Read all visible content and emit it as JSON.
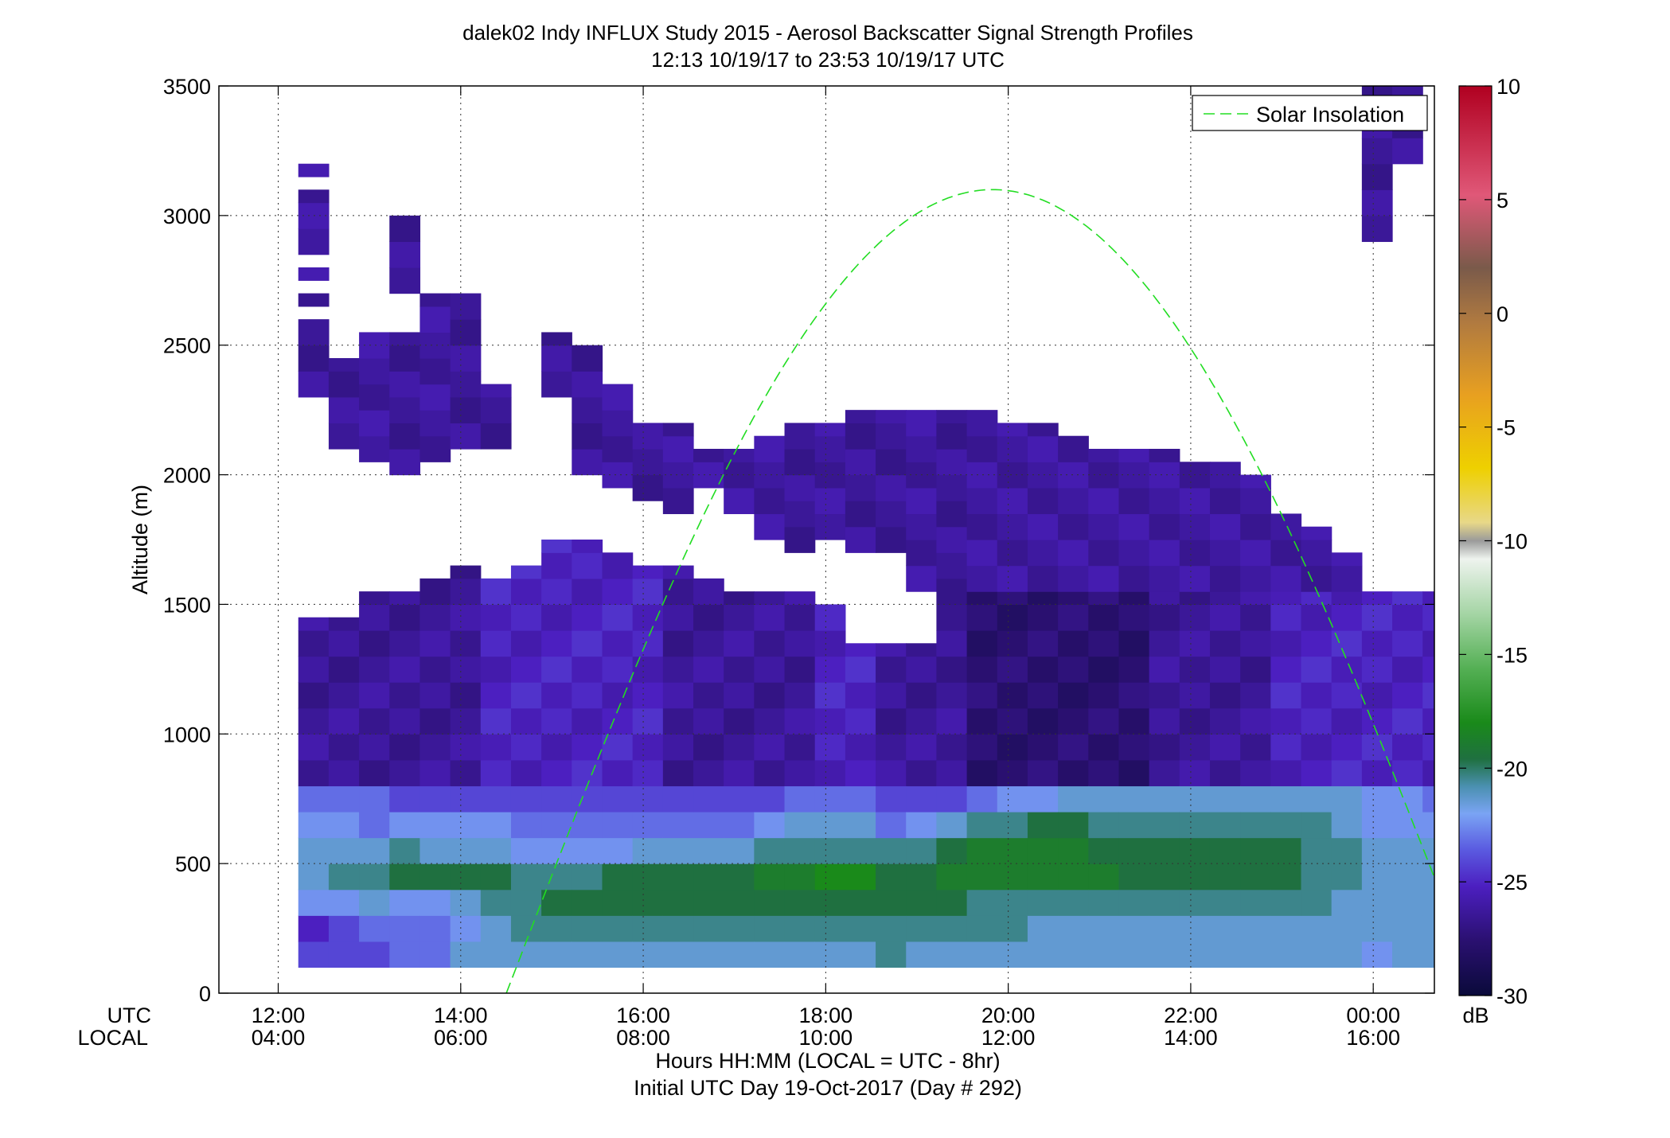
{
  "chart_data": {
    "type": "heatmap",
    "title": "dalek02 Indy INFLUX Study 2015 - Aerosol Backscatter Signal Strength Profiles",
    "subtitle": "12:13 10/19/17 to 23:53 10/19/17  UTC",
    "ylabel": "Altitude (m)",
    "xlabel": "Hours HH:MM  (LOCAL = UTC - 8hr)",
    "xlabel2": "Initial UTC Day 19-Oct-2017 (Day # 292)",
    "row_label_utc": "UTC",
    "row_label_local": "LOCAL",
    "x_range_hours": [
      11.35,
      24.67
    ],
    "y_range": [
      0,
      3500
    ],
    "x_ticks": [
      {
        "hour": 12,
        "utc": "12:00",
        "local": "04:00"
      },
      {
        "hour": 14,
        "utc": "14:00",
        "local": "06:00"
      },
      {
        "hour": 16,
        "utc": "16:00",
        "local": "08:00"
      },
      {
        "hour": 18,
        "utc": "18:00",
        "local": "10:00"
      },
      {
        "hour": 20,
        "utc": "20:00",
        "local": "12:00"
      },
      {
        "hour": 22,
        "utc": "22:00",
        "local": "14:00"
      },
      {
        "hour": 24,
        "utc": "00:00",
        "local": "16:00"
      }
    ],
    "y_ticks": [
      0,
      500,
      1000,
      1500,
      2000,
      2500,
      3000,
      3500
    ],
    "y_tick_labels": [
      "0",
      "500",
      "1000",
      "1500",
      "2000",
      "2500",
      "3000",
      "3500"
    ],
    "grid": true,
    "legend": {
      "position": "top-right",
      "entries": [
        {
          "name": "Solar Insolation",
          "color": "#22dd22",
          "style": "dashed"
        }
      ]
    },
    "colorbar": {
      "range": [
        -30,
        10
      ],
      "ticks": [
        10,
        5,
        0,
        -5,
        -10,
        -15,
        -20,
        -25,
        -30
      ],
      "tick_labels": [
        "10",
        "5",
        "0",
        "-5",
        "-10",
        "-15",
        "-20",
        "-25",
        "-30"
      ],
      "unit": "dB"
    },
    "solar_insolation": {
      "start_hour": 14.5,
      "end_hour": 24.67,
      "peak_hour": 19.83,
      "peak_altitude": 3100,
      "end_altitude": 420
    },
    "backscatter": {
      "start_hour": 12.22,
      "step_hours": 0.333,
      "height_step_m": 100,
      "columns": [
        {
          "base": 0,
          "top": 1450,
          "low": [
            -25,
            -26,
            -23,
            -22,
            -22,
            -23,
            -24
          ],
          "mid": -27,
          "upper": [
            {
              "b": 2300,
              "t": 2600
            },
            {
              "b": 2650,
              "t": 2700
            },
            {
              "b": 2750,
              "t": 2800
            },
            {
              "b": 2850,
              "t": 3100
            },
            {
              "b": 3150,
              "t": 3200
            }
          ]
        },
        {
          "base": 0,
          "top": 1450,
          "low": [
            -25,
            -25,
            -23,
            -21,
            -22,
            -23,
            -24
          ],
          "mid": -27,
          "upper": [
            {
              "b": 2100,
              "t": 2450
            }
          ]
        },
        {
          "base": 0,
          "top": 1550,
          "low": [
            -25,
            -24,
            -22,
            -21,
            -22,
            -24,
            -24
          ],
          "mid": -27,
          "upper": [
            {
              "b": 2050,
              "t": 2550
            }
          ]
        },
        {
          "base": 0,
          "top": 1550,
          "low": [
            -24,
            -24,
            -23,
            -20,
            -21,
            -23,
            -25
          ],
          "mid": -27,
          "upper": [
            {
              "b": 2000,
              "t": 2550
            },
            {
              "b": 2700,
              "t": 3000
            }
          ]
        },
        {
          "base": 0,
          "top": 1600,
          "low": [
            -24,
            -24,
            -23,
            -20,
            -22,
            -23,
            -25
          ],
          "mid": -27,
          "upper": [
            {
              "b": 2050,
              "t": 2700
            }
          ]
        },
        {
          "base": 0,
          "top": 1650,
          "low": [
            -22,
            -23,
            -22,
            -20,
            -22,
            -23,
            -25
          ],
          "mid": -27,
          "upper": [
            {
              "b": 2100,
              "t": 2700
            }
          ]
        },
        {
          "base": 0,
          "top": 1600,
          "low": [
            -22,
            -22,
            -21,
            -20,
            -22,
            -23,
            -25
          ],
          "mid": -26,
          "upper": [
            {
              "b": 2100,
              "t": 2350
            }
          ]
        },
        {
          "base": 0,
          "top": 1650,
          "low": [
            -22,
            -21,
            -21,
            -21,
            -23,
            -24,
            -25
          ],
          "mid": -26,
          "upper": []
        },
        {
          "base": 0,
          "top": 1750,
          "low": [
            -22,
            -21,
            -20,
            -21,
            -23,
            -24,
            -25
          ],
          "mid": -26,
          "upper": [
            {
              "b": 2300,
              "t": 2550
            }
          ]
        },
        {
          "base": 0,
          "top": 1750,
          "low": [
            -22,
            -21,
            -20,
            -21,
            -23,
            -24,
            -25
          ],
          "mid": -26,
          "upper": [
            {
              "b": 2000,
              "t": 2500
            }
          ]
        },
        {
          "base": 0,
          "top": 1700,
          "low": [
            -22,
            -21,
            -20,
            -20,
            -23,
            -24,
            -25
          ],
          "mid": -26,
          "upper": [
            {
              "b": 1950,
              "t": 2350
            }
          ]
        },
        {
          "base": 0,
          "top": 1650,
          "low": [
            -22,
            -21,
            -20,
            -20,
            -22,
            -24,
            -25
          ],
          "mid": -26,
          "upper": [
            {
              "b": 1900,
              "t": 2200
            }
          ]
        },
        {
          "base": 0,
          "top": 1650,
          "low": [
            -22,
            -21,
            -20,
            -20,
            -22,
            -24,
            -25
          ],
          "mid": -27,
          "upper": [
            {
              "b": 1850,
              "t": 2200
            }
          ]
        },
        {
          "base": 0,
          "top": 1600,
          "low": [
            -22,
            -21,
            -20,
            -20,
            -22,
            -24,
            -25
          ],
          "mid": -27,
          "upper": [
            {
              "b": 1950,
              "t": 2100
            }
          ]
        },
        {
          "base": 0,
          "top": 1550,
          "low": [
            -22,
            -21,
            -20,
            -20,
            -22,
            -24,
            -25
          ],
          "mid": -27,
          "upper": [
            {
              "b": 1850,
              "t": 2100
            }
          ]
        },
        {
          "base": 0,
          "top": 1550,
          "low": [
            -22,
            -21,
            -20,
            -19,
            -21,
            -23,
            -25
          ],
          "mid": -27,
          "upper": [
            {
              "b": 1750,
              "t": 2150
            }
          ]
        },
        {
          "base": 0,
          "top": 1550,
          "low": [
            -22,
            -21,
            -20,
            -19,
            -21,
            -22,
            -24
          ],
          "mid": -27,
          "upper": [
            {
              "b": 1700,
              "t": 2200
            }
          ]
        },
        {
          "base": 0,
          "top": 1500,
          "low": [
            -22,
            -21,
            -20,
            -18,
            -21,
            -22,
            -24
          ],
          "mid": -26,
          "upper": [
            {
              "b": 1750,
              "t": 2200
            }
          ]
        },
        {
          "base": 0,
          "top": 1350,
          "low": [
            -22,
            -21,
            -20,
            -18,
            -21,
            -22,
            -24
          ],
          "mid": -26,
          "upper": [
            {
              "b": 1700,
              "t": 2250
            }
          ]
        },
        {
          "base": 0,
          "top": 1350,
          "low": [
            -21,
            -21,
            -20,
            -20,
            -21,
            -24,
            -25
          ],
          "mid": -27,
          "upper": [
            {
              "b": 1700,
              "t": 2250
            }
          ]
        },
        {
          "base": 0,
          "top": 1350,
          "low": [
            -22,
            -21,
            -20,
            -20,
            -21,
            -23,
            -25
          ],
          "mid": -27,
          "upper": [
            {
              "b": 1550,
              "t": 2250
            }
          ]
        },
        {
          "base": 0,
          "top": 1500,
          "low": [
            -22,
            -21,
            -20,
            -19,
            -20,
            -22,
            -25
          ],
          "mid": -27,
          "upper": [
            {
              "b": 1500,
              "t": 2250
            }
          ]
        },
        {
          "base": 0,
          "top": 1550,
          "low": [
            -22,
            -21,
            -21,
            -19,
            -19,
            -21,
            -24
          ],
          "mid": -28,
          "upper": [
            {
              "b": 1550,
              "t": 2250
            }
          ]
        },
        {
          "base": 0,
          "top": 1550,
          "low": [
            -22,
            -21,
            -21,
            -19,
            -19,
            -21,
            -23
          ],
          "mid": -28,
          "upper": [
            {
              "b": 1550,
              "t": 2200
            }
          ]
        },
        {
          "base": 0,
          "top": 1550,
          "low": [
            -22,
            -22,
            -21,
            -19,
            -19,
            -20,
            -23
          ],
          "mid": -28,
          "upper": [
            {
              "b": 1550,
              "t": 2200
            }
          ]
        },
        {
          "base": 0,
          "top": 1550,
          "low": [
            -22,
            -22,
            -21,
            -19,
            -19,
            -20,
            -22
          ],
          "mid": -28,
          "upper": [
            {
              "b": 1550,
              "t": 2150
            }
          ]
        },
        {
          "base": 0,
          "top": 1550,
          "low": [
            -22,
            -22,
            -21,
            -19,
            -20,
            -21,
            -22
          ],
          "mid": -28,
          "upper": [
            {
              "b": 1550,
              "t": 2100
            }
          ]
        },
        {
          "base": 0,
          "top": 1550,
          "low": [
            -22,
            -22,
            -21,
            -20,
            -20,
            -21,
            -22
          ],
          "mid": -28,
          "upper": [
            {
              "b": 1550,
              "t": 2100
            }
          ]
        },
        {
          "base": 0,
          "top": 1550,
          "low": [
            -22,
            -22,
            -21,
            -20,
            -20,
            -21,
            -22
          ],
          "mid": -27,
          "upper": [
            {
              "b": 1550,
              "t": 2100
            }
          ]
        },
        {
          "base": 0,
          "top": 1550,
          "low": [
            -22,
            -22,
            -21,
            -20,
            -20,
            -21,
            -22
          ],
          "mid": -27,
          "upper": [
            {
              "b": 1550,
              "t": 2050
            }
          ]
        },
        {
          "base": 0,
          "top": 1550,
          "low": [
            -22,
            -22,
            -21,
            -20,
            -20,
            -21,
            -22
          ],
          "mid": -27,
          "upper": [
            {
              "b": 1550,
              "t": 2050
            }
          ]
        },
        {
          "base": 0,
          "top": 1550,
          "low": [
            -22,
            -22,
            -21,
            -20,
            -20,
            -21,
            -22
          ],
          "mid": -27,
          "upper": [
            {
              "b": 1550,
              "t": 2000
            }
          ]
        },
        {
          "base": 0,
          "top": 1550,
          "low": [
            -22,
            -22,
            -21,
            -20,
            -20,
            -21,
            -22
          ],
          "mid": -26,
          "upper": [
            {
              "b": 1550,
              "t": 1850
            }
          ]
        },
        {
          "base": 0,
          "top": 1550,
          "low": [
            -22,
            -22,
            -21,
            -21,
            -21,
            -21,
            -22
          ],
          "mid": -26,
          "upper": [
            {
              "b": 1550,
              "t": 1800
            }
          ]
        },
        {
          "base": 0,
          "top": 1550,
          "low": [
            -22,
            -22,
            -22,
            -21,
            -21,
            -22,
            -22
          ],
          "mid": -26,
          "upper": [
            {
              "b": 1550,
              "t": 1700
            }
          ]
        },
        {
          "base": 0,
          "top": 1550,
          "low": [
            -23,
            -22,
            -22,
            -22,
            -22,
            -23,
            -23
          ],
          "mid": -26,
          "upper": [
            {
              "b": 2900,
              "t": 3500
            }
          ]
        },
        {
          "base": 0,
          "top": 1550,
          "low": [
            -22,
            -22,
            -22,
            -22,
            -22,
            -23,
            -23
          ],
          "mid": -26,
          "upper": [
            {
              "b": 3200,
              "t": 3500
            }
          ]
        },
        {
          "base": 0,
          "top": 1550,
          "low": [
            -22,
            -22,
            -22,
            -22,
            -22,
            -23,
            -24
          ],
          "mid": -26,
          "upper": []
        }
      ]
    }
  }
}
